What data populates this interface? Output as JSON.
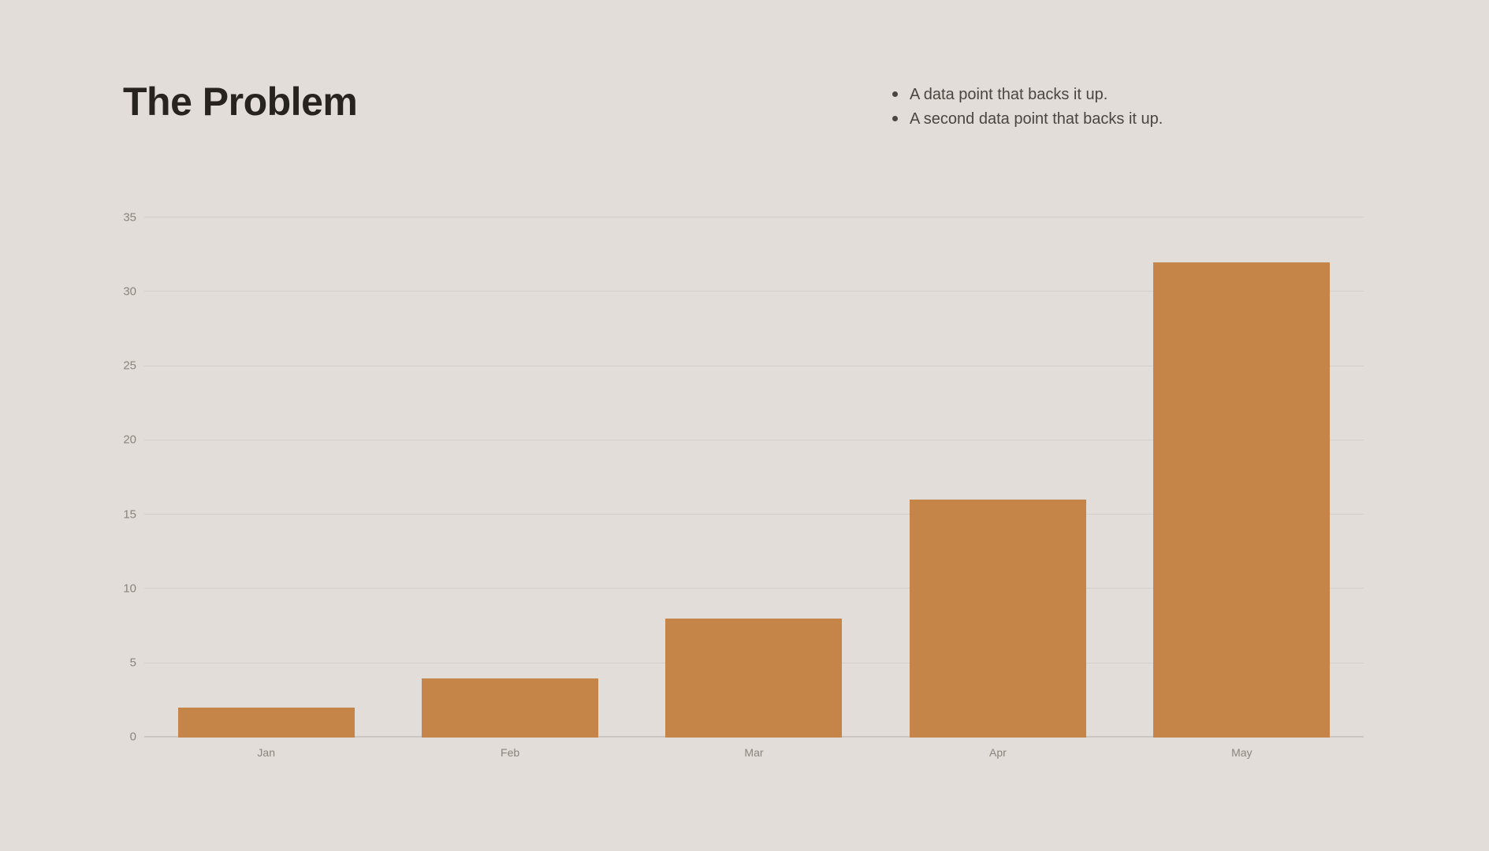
{
  "slide": {
    "title": "The Problem",
    "bullets": [
      "A data point that backs it up.",
      "A second data point that backs it up."
    ]
  },
  "colors": {
    "background": "#e2ddd8",
    "bar": "#c58549",
    "title_text": "#27231f",
    "bullet_text": "#4b4540",
    "axis_text": "#8a847d",
    "gridline": "#d5cfc9",
    "gridline_zero": "#ccc6c0"
  },
  "chart_data": {
    "type": "bar",
    "categories": [
      "Jan",
      "Feb",
      "Mar",
      "Apr",
      "May"
    ],
    "values": [
      2,
      4,
      8,
      16,
      32
    ],
    "title": "",
    "xlabel": "",
    "ylabel": "",
    "ylim": [
      0,
      35
    ],
    "yticks": [
      0,
      5,
      10,
      15,
      20,
      25,
      30,
      35
    ],
    "grid": true,
    "legend": false,
    "bar_width_fraction": 0.724
  }
}
